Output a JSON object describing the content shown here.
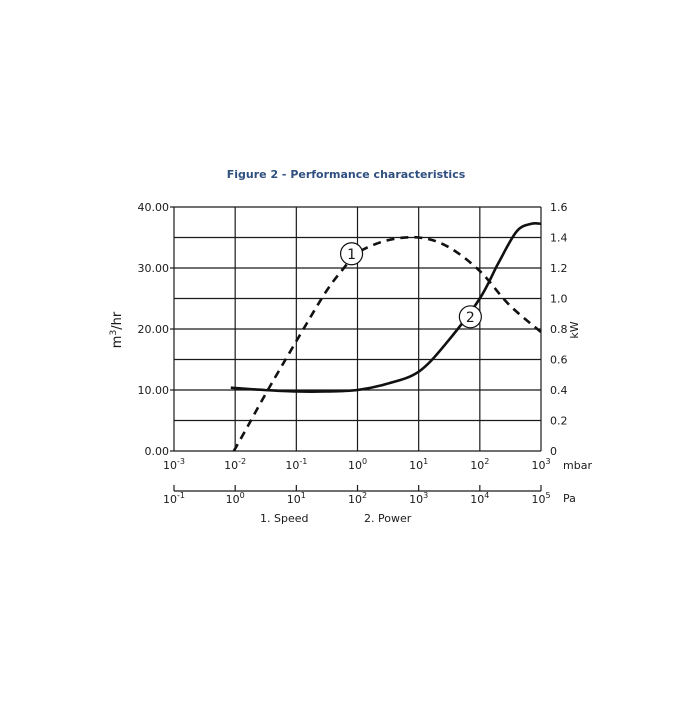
{
  "chart_data": {
    "type": "line",
    "title": "Figure 2 - Performance characteristics",
    "x_scale": "log",
    "x_range_mbar": [
      0.001,
      1000
    ],
    "x_ticks_mbar": [
      {
        "base": "10",
        "exp": "-3"
      },
      {
        "base": "10",
        "exp": "-2"
      },
      {
        "base": "10",
        "exp": "-1"
      },
      {
        "base": "10",
        "exp": "0"
      },
      {
        "base": "10",
        "exp": "1"
      },
      {
        "base": "10",
        "exp": "2"
      },
      {
        "base": "10",
        "exp": "3"
      }
    ],
    "x_unit_mbar": "mbar",
    "x_ticks_pa": [
      {
        "base": "10",
        "exp": "-1"
      },
      {
        "base": "10",
        "exp": "0"
      },
      {
        "base": "10",
        "exp": "1"
      },
      {
        "base": "10",
        "exp": "2"
      },
      {
        "base": "10",
        "exp": "3"
      },
      {
        "base": "10",
        "exp": "4"
      },
      {
        "base": "10",
        "exp": "5"
      }
    ],
    "x_unit_pa": "Pa",
    "y_left": {
      "label_base": "m",
      "label_sup": "3",
      "label_rest": "/hr",
      "range": [
        0,
        40
      ],
      "ticks": [
        "0.00",
        "10.00",
        "20.00",
        "30.00",
        "40.00"
      ]
    },
    "y_right": {
      "label": "kW",
      "range": [
        0,
        1.6
      ],
      "ticks": [
        "0",
        "0.2",
        "0.4",
        "0.6",
        "0.8",
        "1.0",
        "1.2",
        "1.4",
        "1.6"
      ]
    },
    "grid": true,
    "series": [
      {
        "name": "Speed",
        "marker": "1",
        "style": "dashed",
        "axis": "left",
        "points": [
          {
            "x": 0.0095,
            "y": 0
          },
          {
            "x": 0.015,
            "y": 3.5
          },
          {
            "x": 0.03,
            "y": 9
          },
          {
            "x": 0.1,
            "y": 18
          },
          {
            "x": 0.3,
            "y": 26
          },
          {
            "x": 0.6,
            "y": 30
          },
          {
            "x": 1,
            "y": 32.5
          },
          {
            "x": 3,
            "y": 34.5
          },
          {
            "x": 10,
            "y": 35
          },
          {
            "x": 30,
            "y": 33.5
          },
          {
            "x": 100,
            "y": 29.5
          },
          {
            "x": 300,
            "y": 24
          },
          {
            "x": 1000,
            "y": 19.5
          }
        ]
      },
      {
        "name": "Power",
        "marker": "2",
        "style": "solid",
        "axis": "right",
        "points": [
          {
            "x": 0.0085,
            "y": 0.415
          },
          {
            "x": 0.03,
            "y": 0.4
          },
          {
            "x": 0.1,
            "y": 0.39
          },
          {
            "x": 0.3,
            "y": 0.39
          },
          {
            "x": 1,
            "y": 0.4
          },
          {
            "x": 3,
            "y": 0.44
          },
          {
            "x": 10,
            "y": 0.52
          },
          {
            "x": 30,
            "y": 0.72
          },
          {
            "x": 100,
            "y": 1.0
          },
          {
            "x": 200,
            "y": 1.23
          },
          {
            "x": 400,
            "y": 1.44
          },
          {
            "x": 700,
            "y": 1.49
          },
          {
            "x": 1000,
            "y": 1.49
          }
        ]
      }
    ],
    "legend": [
      "1.  Speed",
      "2.  Power"
    ]
  }
}
